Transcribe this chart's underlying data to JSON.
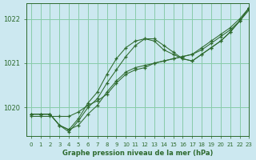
{
  "title": "Graphe pression niveau de la mer (hPa)",
  "bg_color": "#cce8f0",
  "grid_color": "#88ccaa",
  "line_color": "#2d6a2d",
  "xlim": [
    -0.5,
    23
  ],
  "ylim": [
    1019.35,
    1022.35
  ],
  "yticks": [
    1020,
    1021,
    1022
  ],
  "xticks": [
    0,
    1,
    2,
    3,
    4,
    5,
    6,
    7,
    8,
    9,
    10,
    11,
    12,
    13,
    14,
    15,
    16,
    17,
    18,
    19,
    20,
    21,
    22,
    23
  ],
  "series": [
    [
      1019.8,
      1019.8,
      1019.8,
      1019.8,
      1019.8,
      1019.9,
      1020.05,
      1020.15,
      1020.3,
      1020.55,
      1020.75,
      1020.85,
      1020.9,
      1021.0,
      1021.05,
      1021.1,
      1021.15,
      1021.2,
      1021.3,
      1021.45,
      1021.6,
      1021.75,
      1021.95,
      1022.2
    ],
    [
      1019.85,
      1019.85,
      1019.85,
      1019.6,
      1019.5,
      1019.6,
      1019.85,
      1020.05,
      1020.35,
      1020.6,
      1020.8,
      1020.9,
      1020.95,
      1021.0,
      1021.05,
      1021.1,
      1021.15,
      1021.2,
      1021.35,
      1021.5,
      1021.65,
      1021.8,
      1022.0,
      1022.25
    ],
    [
      1019.85,
      1019.85,
      1019.85,
      1019.6,
      1019.5,
      1019.75,
      1020.1,
      1020.35,
      1020.75,
      1021.1,
      1021.35,
      1021.5,
      1021.55,
      1021.5,
      1021.3,
      1021.2,
      1021.1,
      1021.05,
      1021.2,
      1021.35,
      1021.5,
      1021.7,
      1021.95,
      1022.25
    ],
    [
      1019.85,
      1019.85,
      1019.85,
      1019.6,
      1019.45,
      1019.7,
      1020.0,
      1020.2,
      1020.55,
      1020.85,
      1021.15,
      1021.4,
      1021.55,
      1021.55,
      1021.4,
      1021.25,
      1021.1,
      1021.05,
      1021.2,
      1021.35,
      1021.5,
      1021.7,
      1021.95,
      1022.25
    ]
  ]
}
